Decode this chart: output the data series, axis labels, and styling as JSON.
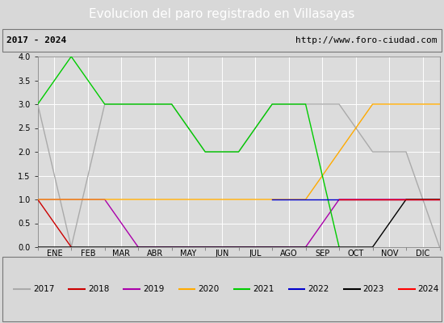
{
  "title": "Evolucion del paro registrado en Villasayas",
  "subtitle_left": "2017 - 2024",
  "subtitle_right": "http://www.foro-ciudad.com",
  "months": [
    "ENE",
    "FEB",
    "MAR",
    "ABR",
    "MAY",
    "JUN",
    "JUL",
    "AGO",
    "SEP",
    "OCT",
    "NOV",
    "DIC"
  ],
  "xlim": [
    0,
    12
  ],
  "ylim": [
    0,
    4.0
  ],
  "yticks": [
    0.0,
    0.5,
    1.0,
    1.5,
    2.0,
    2.5,
    3.0,
    3.5,
    4.0
  ],
  "series": {
    "2017": {
      "color": "#aaaaaa",
      "x": [
        0,
        1,
        2,
        3,
        4,
        5,
        6,
        7,
        8,
        9,
        10,
        11,
        12
      ],
      "y": [
        3,
        0,
        3,
        3,
        3,
        2,
        2,
        3,
        3,
        3,
        2,
        2,
        0
      ]
    },
    "2018": {
      "color": "#cc0000",
      "x": [
        0,
        1
      ],
      "y": [
        1,
        0
      ]
    },
    "2019": {
      "color": "#aa00aa",
      "x": [
        0,
        1,
        2,
        3,
        7,
        8,
        9,
        10,
        11,
        12
      ],
      "y": [
        1,
        1,
        1,
        0,
        0,
        0,
        1,
        1,
        1,
        1
      ]
    },
    "2020": {
      "color": "#ffaa00",
      "x": [
        0,
        1,
        2,
        3,
        4,
        5,
        6,
        7,
        8,
        9,
        10,
        11,
        12
      ],
      "y": [
        1,
        1,
        1,
        1,
        1,
        1,
        1,
        1,
        1,
        2,
        3,
        3,
        3
      ]
    },
    "2021": {
      "color": "#00cc00",
      "x": [
        0,
        1,
        2,
        3,
        4,
        5,
        6,
        7,
        8,
        9
      ],
      "y": [
        3,
        4,
        3,
        3,
        3,
        2,
        2,
        3,
        3,
        0
      ]
    },
    "2022": {
      "color": "#0000cc",
      "x": [
        7,
        8,
        9,
        10,
        11,
        12
      ],
      "y": [
        1,
        1,
        1,
        1,
        1,
        1
      ]
    },
    "2023": {
      "color": "#000000",
      "x": [
        0,
        1,
        2,
        3,
        4,
        5,
        6,
        7,
        8,
        9,
        10,
        11,
        12
      ],
      "y": [
        0,
        0,
        0,
        0,
        0,
        0,
        0,
        0,
        0,
        0,
        0,
        1,
        1
      ]
    },
    "2024": {
      "color": "#ff0000",
      "x": [
        9,
        10,
        11,
        12
      ],
      "y": [
        1,
        1,
        1,
        1
      ]
    }
  },
  "bg_color": "#d8d8d8",
  "plot_bg_color": "#dcdcdc",
  "grid_color": "#ffffff",
  "title_bg_color": "#4472c4",
  "title_text_color": "#ffffff",
  "subtitle_bg_color": "#d0d0d0",
  "border_color": "#888888",
  "title_fontsize": 11,
  "tick_fontsize": 7,
  "legend_fontsize": 7.5,
  "line_width": 1.0
}
